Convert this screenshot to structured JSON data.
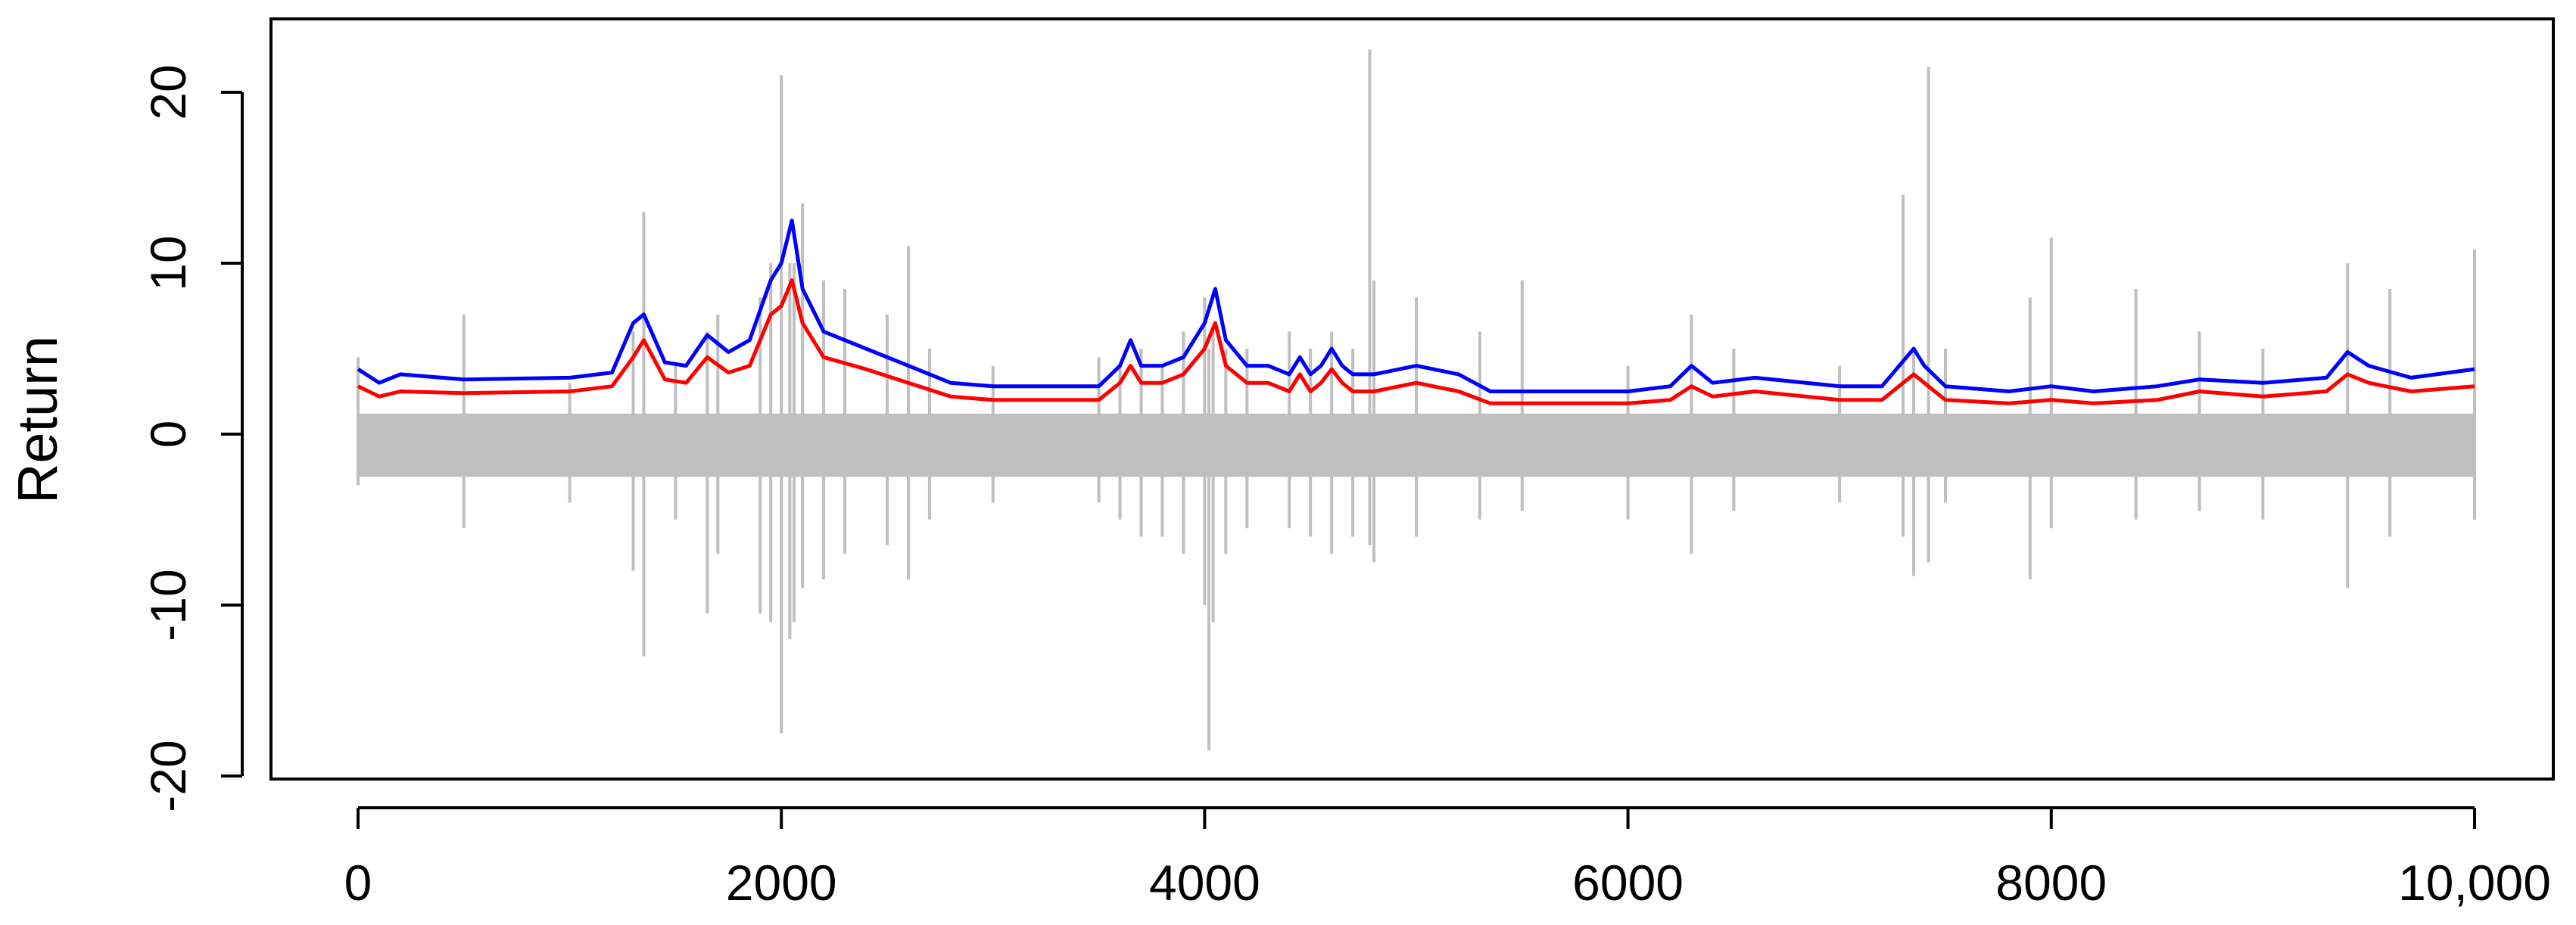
{
  "chart_data": {
    "type": "line",
    "title": "",
    "xlabel": "",
    "ylabel": "Return",
    "xlim": [
      0,
      10000
    ],
    "ylim": [
      -20,
      23
    ],
    "x_ticks": [
      0,
      2000,
      4000,
      6000,
      8000,
      10000
    ],
    "x_tick_labels": [
      "0",
      "2000",
      "4000",
      "6000",
      "8000",
      "10,000"
    ],
    "y_ticks": [
      -20,
      -10,
      0,
      10,
      20
    ],
    "y_tick_labels": [
      "-20",
      "-10",
      "0",
      "10",
      "20"
    ],
    "grid": false,
    "legend": "none",
    "series": [
      {
        "color": "#bfbfbf",
        "style": "vertical-spikes",
        "x": [
          0,
          500,
          1000,
          1300,
          1350,
          1500,
          1650,
          1700,
          1900,
          1950,
          2000,
          2040,
          2060,
          2100,
          2200,
          2300,
          2500,
          2600,
          2700,
          3000,
          3500,
          3600,
          3700,
          3800,
          3900,
          4000,
          4020,
          4040,
          4100,
          4200,
          4400,
          4500,
          4600,
          4700,
          4780,
          4800,
          5000,
          5300,
          5500,
          6000,
          6300,
          6500,
          7000,
          7300,
          7350,
          7420,
          7500,
          7900,
          8000,
          8400,
          8700,
          9000,
          9400,
          9600,
          10000
        ],
        "y_high": [
          4.5,
          7,
          3,
          6,
          13,
          4,
          6,
          7,
          8,
          10,
          21,
          10,
          10,
          13.5,
          9,
          8.5,
          7,
          11,
          5,
          4,
          4.5,
          4,
          5,
          4,
          6,
          8,
          5,
          6,
          5,
          5,
          6,
          5,
          6,
          5,
          22.5,
          9,
          8,
          6,
          9,
          4,
          7,
          5,
          4,
          14,
          5,
          21.5,
          5,
          8,
          11.5,
          8.5,
          6,
          5,
          10,
          8.5,
          10.8
        ],
        "y_low": [
          -3,
          -5.5,
          -4,
          -8,
          -13,
          -5,
          -10.5,
          -7,
          -10.5,
          -11,
          -17.5,
          -12,
          -11,
          -9,
          -8.5,
          -7,
          -6.5,
          -8.5,
          -5,
          -4,
          -4,
          -5,
          -6,
          -6,
          -7,
          -10,
          -18.5,
          -11,
          -7,
          -5.5,
          -5.5,
          -6,
          -7,
          -6,
          -6.5,
          -7.5,
          -6,
          -5,
          -4.5,
          -5,
          -7,
          -4.5,
          -4,
          -6,
          -8.3,
          -7.5,
          -4,
          -8.5,
          -5.5,
          -5,
          -4.5,
          -5,
          -9,
          -6,
          -5
        ]
      },
      {
        "color": "#ff0000",
        "x": [
          0,
          100,
          200,
          500,
          1000,
          1200,
          1300,
          1350,
          1450,
          1550,
          1650,
          1750,
          1850,
          1950,
          2000,
          2050,
          2100,
          2200,
          2400,
          2600,
          2800,
          3000,
          3300,
          3500,
          3600,
          3650,
          3700,
          3800,
          3900,
          4000,
          4050,
          4100,
          4200,
          4300,
          4400,
          4450,
          4500,
          4550,
          4600,
          4650,
          4700,
          4800,
          5000,
          5200,
          5350,
          5500,
          6000,
          6200,
          6300,
          6400,
          6600,
          7000,
          7200,
          7350,
          7400,
          7500,
          7800,
          8000,
          8200,
          8500,
          8700,
          9000,
          9300,
          9400,
          9500,
          9700,
          10000
        ],
        "y": [
          2.8,
          2.2,
          2.5,
          2.4,
          2.5,
          2.8,
          4.5,
          5.5,
          3.2,
          3.0,
          4.5,
          3.6,
          4.0,
          7.0,
          7.5,
          9.0,
          6.5,
          4.5,
          3.8,
          3.0,
          2.2,
          2.0,
          2.0,
          2.0,
          3.0,
          4.0,
          3.0,
          3.0,
          3.5,
          5.0,
          6.5,
          4.0,
          3.0,
          3.0,
          2.5,
          3.5,
          2.5,
          3.0,
          3.8,
          3.0,
          2.5,
          2.5,
          3.0,
          2.5,
          1.8,
          1.8,
          1.8,
          2.0,
          2.8,
          2.2,
          2.5,
          2.0,
          2.0,
          3.5,
          3.0,
          2.0,
          1.8,
          2.0,
          1.8,
          2.0,
          2.5,
          2.2,
          2.5,
          3.5,
          3.0,
          2.5,
          2.8
        ]
      },
      {
        "color": "#0000ff",
        "x": [
          0,
          100,
          200,
          500,
          1000,
          1200,
          1300,
          1350,
          1450,
          1550,
          1650,
          1750,
          1850,
          1950,
          2000,
          2050,
          2100,
          2200,
          2400,
          2600,
          2800,
          3000,
          3300,
          3500,
          3600,
          3650,
          3700,
          3800,
          3900,
          4000,
          4050,
          4100,
          4200,
          4300,
          4400,
          4450,
          4500,
          4550,
          4600,
          4650,
          4700,
          4800,
          5000,
          5200,
          5350,
          5500,
          6000,
          6200,
          6300,
          6400,
          6600,
          7000,
          7200,
          7350,
          7400,
          7500,
          7800,
          8000,
          8200,
          8500,
          8700,
          9000,
          9300,
          9400,
          9500,
          9700,
          10000
        ],
        "y": [
          3.8,
          3.0,
          3.5,
          3.2,
          3.3,
          3.6,
          6.5,
          7.0,
          4.2,
          4.0,
          5.8,
          4.8,
          5.5,
          9.0,
          10.0,
          12.5,
          8.5,
          6.0,
          5.0,
          4.0,
          3.0,
          2.8,
          2.8,
          2.8,
          4.0,
          5.5,
          4.0,
          4.0,
          4.5,
          6.5,
          8.5,
          5.5,
          4.0,
          4.0,
          3.5,
          4.5,
          3.5,
          4.0,
          5.0,
          4.0,
          3.5,
          3.5,
          4.0,
          3.5,
          2.5,
          2.5,
          2.5,
          2.8,
          4.0,
          3.0,
          3.3,
          2.8,
          2.8,
          5.0,
          4.0,
          2.8,
          2.5,
          2.8,
          2.5,
          2.8,
          3.2,
          3.0,
          3.3,
          4.8,
          4.0,
          3.3,
          3.8
        ]
      }
    ]
  }
}
